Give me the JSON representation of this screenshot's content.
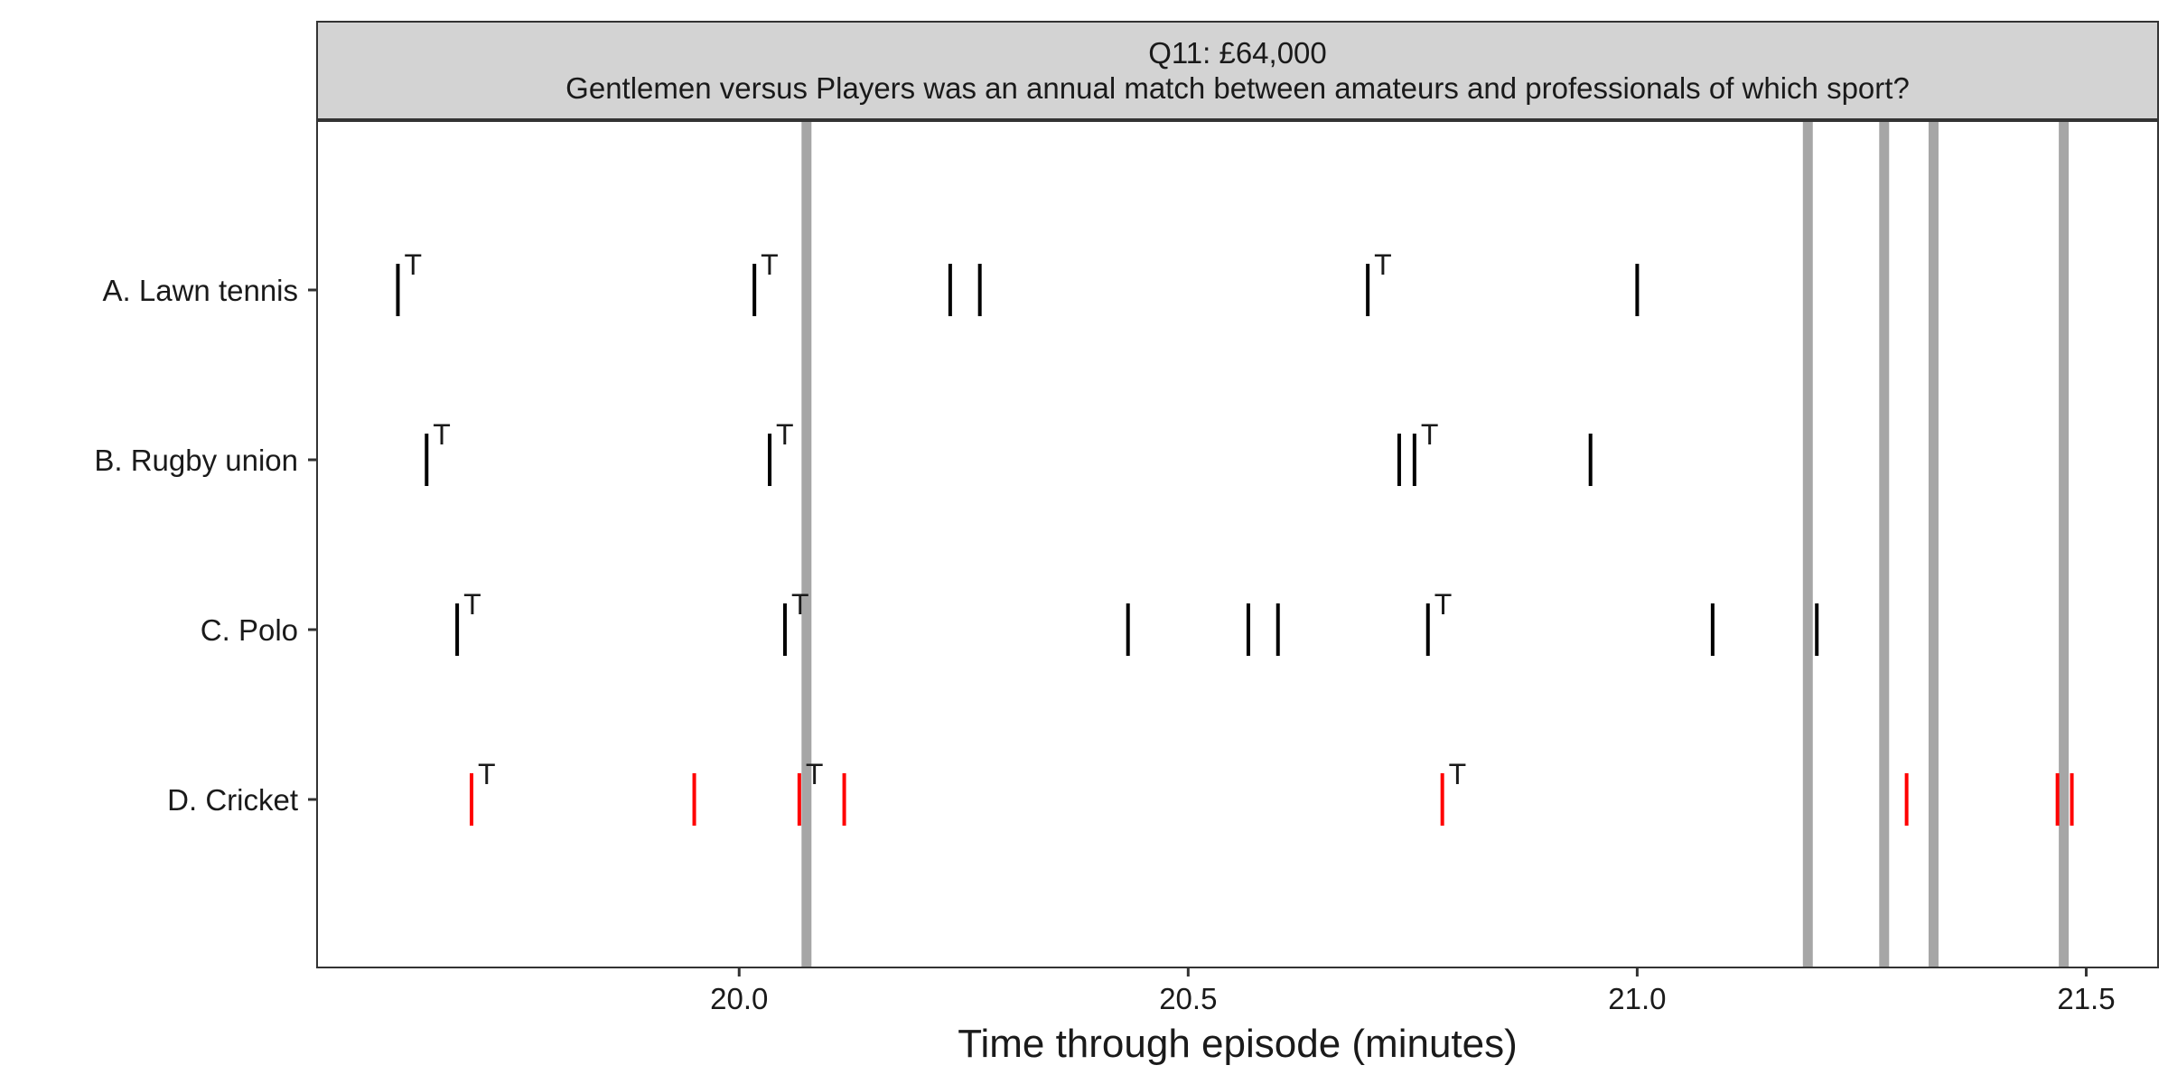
{
  "chart_data": {
    "type": "scatter",
    "title_line1": "Q11: £64,000",
    "title_line2": "Gentlemen versus Players was an annual match between amateurs and professionals of which sport?",
    "xlabel": "Time through episode (minutes)",
    "ylabel": "",
    "xlim": [
      19.53,
      21.58
    ],
    "xticks": [
      "20.0",
      "20.5",
      "21.0",
      "21.5"
    ],
    "xtick_values": [
      20.0,
      20.5,
      21.0,
      21.5
    ],
    "categories": [
      "A. Lawn tennis",
      "B. Rugby union",
      "C. Polo",
      "D. Cricket"
    ],
    "vertical_reference_lines": [
      20.075,
      21.19,
      21.275,
      21.33,
      21.475
    ],
    "reference_line_color": "#a6a6a6",
    "marker_label": "T",
    "series": [
      {
        "category": "A. Lawn tennis",
        "color": "#000000",
        "events": [
          {
            "x": 19.62,
            "t": true
          },
          {
            "x": 20.017,
            "t": true
          },
          {
            "x": 20.235,
            "t": false
          },
          {
            "x": 20.268,
            "t": false
          },
          {
            "x": 20.7,
            "t": true
          },
          {
            "x": 21.0,
            "t": false
          }
        ]
      },
      {
        "category": "B. Rugby union",
        "color": "#000000",
        "events": [
          {
            "x": 19.652,
            "t": true
          },
          {
            "x": 20.034,
            "t": true
          },
          {
            "x": 20.735,
            "t": false
          },
          {
            "x": 20.752,
            "t": true
          },
          {
            "x": 20.948,
            "t": false
          }
        ]
      },
      {
        "category": "C. Polo",
        "color": "#000000",
        "events": [
          {
            "x": 19.686,
            "t": true
          },
          {
            "x": 20.051,
            "t": true
          },
          {
            "x": 20.433,
            "t": false
          },
          {
            "x": 20.567,
            "t": false
          },
          {
            "x": 20.6,
            "t": false
          },
          {
            "x": 20.767,
            "t": true
          },
          {
            "x": 21.084,
            "t": false
          },
          {
            "x": 21.2,
            "t": false
          }
        ]
      },
      {
        "category": "D. Cricket",
        "color": "#ff0000",
        "correct": true,
        "events": [
          {
            "x": 19.702,
            "t": true
          },
          {
            "x": 19.95,
            "t": false
          },
          {
            "x": 20.067,
            "t": true
          },
          {
            "x": 20.117,
            "t": false
          },
          {
            "x": 20.783,
            "t": true
          },
          {
            "x": 21.3,
            "t": false
          },
          {
            "x": 21.468,
            "t": false
          },
          {
            "x": 21.484,
            "t": false
          }
        ]
      }
    ],
    "grid": false,
    "legend": "none"
  }
}
